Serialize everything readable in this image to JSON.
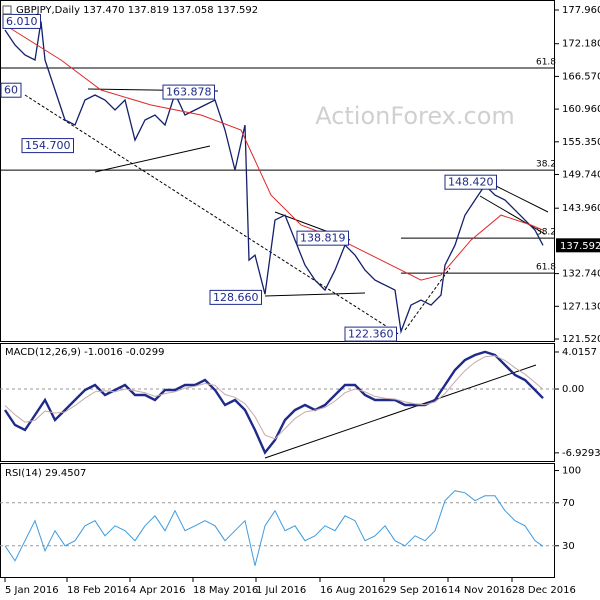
{
  "chart_data": [
    {
      "type": "line",
      "title": "GBPJPY,Daily 137.470 137.819 137.058 137.592",
      "watermark": "ActionForex.com",
      "xlim": [
        -2.5,
        275
      ],
      "ylim": [
        121.005,
        179.676
      ],
      "yticks": [
        {
          "value": 177.96,
          "label": "177.960"
        },
        {
          "value": 172.18,
          "label": "172.180"
        },
        {
          "value": 166.57,
          "label": "166.570"
        },
        {
          "value": 160.96,
          "label": "160.960"
        },
        {
          "value": 155.35,
          "label": "155.350"
        },
        {
          "value": 149.74,
          "label": "149.740"
        },
        {
          "value": 143.96,
          "label": "143.960"
        },
        {
          "value": 132.74,
          "label": "132.740"
        },
        {
          "value": 127.13,
          "label": "127.130"
        },
        {
          "value": 121.52,
          "label": "121.520"
        }
      ],
      "last_price": 137.592,
      "series": [
        {
          "color": "#14206e",
          "width": 1.3,
          "x": [
            0,
            5,
            10,
            15,
            18,
            20,
            25,
            30,
            35,
            40,
            45,
            50,
            55,
            60,
            65,
            70,
            75,
            80,
            85,
            90,
            95,
            100,
            105,
            110,
            115,
            120,
            122,
            125,
            130,
            135,
            140,
            145,
            150,
            155,
            160,
            165,
            170,
            175,
            180,
            185,
            190,
            195,
            198,
            203,
            208,
            213,
            218,
            220,
            225,
            230,
            235,
            240,
            245,
            250,
            255,
            260,
            265,
            269
          ],
          "values": [
            174.53,
            171.95,
            170.24,
            169.38,
            176.01,
            169.38,
            164.23,
            159.09,
            158.23,
            162.52,
            163.37,
            162.52,
            160.8,
            162.52,
            155.65,
            159.09,
            159.94,
            158.23,
            163.6,
            159.94,
            160.8,
            161.66,
            162.52,
            157.37,
            150.5,
            158.23,
            135.06,
            135.92,
            129.2,
            141.92,
            142.78,
            138.49,
            134.2,
            131.63,
            129.91,
            133.34,
            137.63,
            135.92,
            133.34,
            131.63,
            130.77,
            129.91,
            122.8,
            127.34,
            128.2,
            127.34,
            129.05,
            134.2,
            137.63,
            142.78,
            145.36,
            147.93,
            146.21,
            145.36,
            143.64,
            141.92,
            140.21,
            137.592
          ]
        },
        {
          "color": "#e02828",
          "width": 1,
          "x": [
            0,
            28,
            48,
            73,
            98,
            118,
            133,
            148,
            168,
            188,
            208,
            218,
            233,
            248,
            263,
            269
          ],
          "values": [
            175.39,
            169.38,
            164.23,
            161.66,
            159.94,
            157.37,
            146.21,
            141.07,
            138.49,
            135.06,
            131.63,
            132.49,
            138.49,
            142.78,
            141.07,
            140.21
          ]
        }
      ],
      "levels": [
        {
          "value": 168.01,
          "label": "61.8",
          "from": -2.5
        },
        {
          "value": 150.5,
          "label": "38.2",
          "from": -2.5
        },
        {
          "value": 138.83,
          "label": "38.2",
          "from": 198
        },
        {
          "value": 132.83,
          "label": "61.8",
          "from": 198
        }
      ],
      "annotations": [
        {
          "text": "6.010",
          "x": -1,
          "y": 176.0
        },
        {
          "text": "60",
          "x": -2.5,
          "y": 164.2
        },
        {
          "text": "163.878",
          "x": 79,
          "y": 163.878
        },
        {
          "text": "154.700",
          "x": 8.5,
          "y": 154.7
        },
        {
          "text": "138.819",
          "x": 146,
          "y": 138.819
        },
        {
          "text": "128.660",
          "x": 102.5,
          "y": 128.66
        },
        {
          "text": "122.360",
          "x": 170,
          "y": 122.36
        },
        {
          "text": "148.420",
          "x": 220,
          "y": 148.42
        }
      ]
    },
    {
      "type": "line",
      "title": "MACD(12,26,9) -1.0016 -0.0299",
      "xlim": [
        -2.5,
        275
      ],
      "ylim": [
        -7.92,
        4.99
      ],
      "yticks": [
        4.0157,
        {
          "value": 0,
          "label": "0.00"
        },
        -6.9293
      ],
      "dashed_levels": [
        0
      ],
      "x": [
        0,
        5,
        10,
        15,
        20,
        25,
        30,
        35,
        40,
        45,
        50,
        55,
        60,
        65,
        70,
        75,
        80,
        85,
        90,
        95,
        100,
        105,
        110,
        115,
        120,
        125,
        130,
        135,
        140,
        145,
        150,
        155,
        160,
        165,
        170,
        175,
        180,
        185,
        190,
        195,
        200,
        205,
        210,
        215,
        220,
        225,
        230,
        235,
        240,
        245,
        250,
        255,
        260,
        265,
        269
      ],
      "series": [
        {
          "color": "#1f2a8a",
          "width": 2.4,
          "values": [
            -2.28,
            -3.91,
            -4.45,
            -2.82,
            -1.19,
            -3.36,
            -2.28,
            -1.19,
            -0.11,
            0.43,
            -0.65,
            -0.11,
            0.43,
            -0.65,
            -0.65,
            -1.19,
            -0.11,
            -0.11,
            0.43,
            0.43,
            0.98,
            -0.11,
            -1.74,
            -1.19,
            -2.28,
            -4.45,
            -6.9,
            -5.53,
            -3.36,
            -2.28,
            -1.74,
            -2.28,
            -1.74,
            -0.65,
            0.43,
            0.43,
            -0.65,
            -1.19,
            -1.19,
            -1.19,
            -1.74,
            -1.74,
            -1.74,
            -1.19,
            0.43,
            2.06,
            3.15,
            3.69,
            4.02,
            3.69,
            2.6,
            1.52,
            0.98,
            -0.11,
            -1.0016
          ]
        },
        {
          "color": "#c8a8a8",
          "width": 1,
          "values": [
            -1.8,
            -2.8,
            -3.6,
            -3.4,
            -2.4,
            -2.6,
            -2.5,
            -1.8,
            -1.0,
            -0.3,
            -0.2,
            -0.3,
            0.0,
            -0.2,
            -0.4,
            -0.8,
            -0.5,
            -0.3,
            0.1,
            0.3,
            0.6,
            0.4,
            -0.6,
            -0.9,
            -1.6,
            -3.0,
            -5.0,
            -5.4,
            -4.3,
            -3.2,
            -2.5,
            -2.3,
            -2.0,
            -1.3,
            -0.4,
            0.0,
            -0.3,
            -0.8,
            -1.0,
            -1.1,
            -1.4,
            -1.6,
            -1.7,
            -1.4,
            -0.5,
            0.8,
            2.0,
            2.9,
            3.5,
            3.6,
            3.1,
            2.3,
            1.6,
            0.7,
            -0.0299
          ]
        }
      ]
    },
    {
      "type": "line",
      "title": "RSI(14) 29.4507",
      "xlim": [
        -2.5,
        275
      ],
      "ylim": [
        0,
        107
      ],
      "yticks": [
        100,
        70,
        30
      ],
      "dashed_levels": [
        70,
        30
      ],
      "x": [
        0,
        5,
        10,
        15,
        20,
        25,
        30,
        35,
        40,
        45,
        50,
        55,
        60,
        65,
        70,
        75,
        80,
        85,
        90,
        95,
        100,
        105,
        110,
        115,
        120,
        125,
        130,
        135,
        140,
        145,
        150,
        155,
        160,
        165,
        170,
        175,
        180,
        185,
        190,
        195,
        200,
        205,
        210,
        215,
        220,
        225,
        230,
        235,
        240,
        245,
        250,
        255,
        260,
        265,
        269
      ],
      "series": [
        {
          "color": "#3d9be0",
          "width": 1,
          "values": [
            30,
            16,
            34.7,
            53.3,
            25.3,
            44,
            30,
            34.7,
            48.6,
            53.3,
            39.3,
            48.6,
            44,
            34.7,
            48.6,
            57.9,
            44,
            62.6,
            44,
            48.6,
            53.3,
            48.6,
            34.7,
            44,
            53.3,
            11.4,
            48.6,
            62.6,
            44,
            48.6,
            34.7,
            39.3,
            48.6,
            44,
            57.9,
            53.3,
            34.7,
            39.3,
            48.6,
            34.7,
            30,
            39.3,
            34.7,
            44,
            71.9,
            81.2,
            79.3,
            71.9,
            76.5,
            76.5,
            62.6,
            53.3,
            48.6,
            34.7,
            29.4507
          ]
        }
      ],
      "xticks": [
        {
          "value": 0,
          "label": "5 Jan 2016"
        },
        {
          "value": 31,
          "label": "18 Feb 2016"
        },
        {
          "value": 62.5,
          "label": "4 Apr 2016"
        },
        {
          "value": 94,
          "label": "18 May 2016"
        },
        {
          "value": 125.5,
          "label": "1 Jul 2016"
        },
        {
          "value": 157.5,
          "label": "16 Aug 2016"
        },
        {
          "value": 189.5,
          "label": "29 Sep 2016"
        },
        {
          "value": 221.5,
          "label": "14 Nov 2016"
        },
        {
          "value": 253.5,
          "label": "28 Dec 2016"
        }
      ]
    }
  ]
}
